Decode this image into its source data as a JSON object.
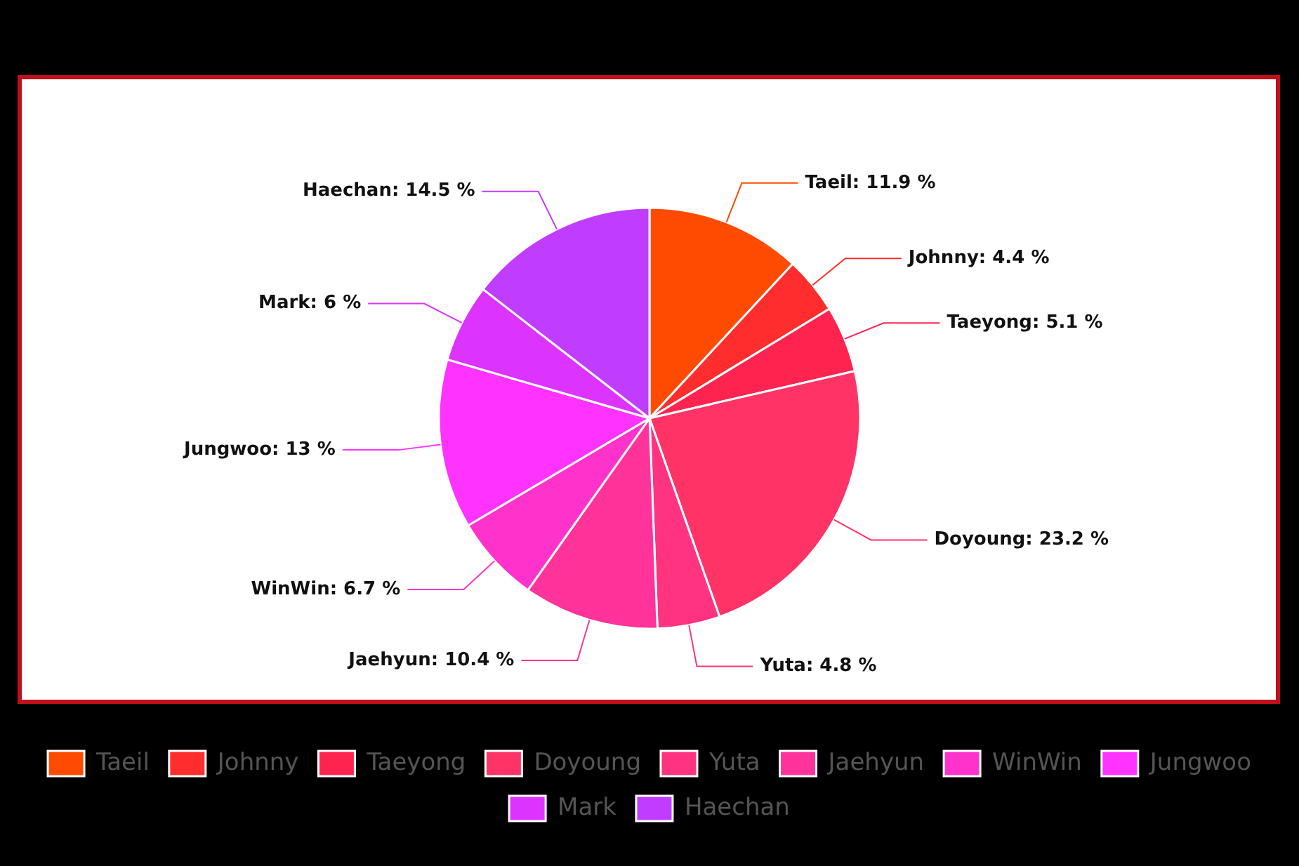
{
  "chart_data": {
    "type": "pie",
    "categories": [
      "Taeil",
      "Johnny",
      "Taeyong",
      "Doyoung",
      "Yuta",
      "Jaehyun",
      "WinWin",
      "Jungwoo",
      "Mark",
      "Haechan"
    ],
    "values": [
      11.9,
      4.4,
      5.1,
      23.2,
      4.8,
      10.4,
      6.7,
      13,
      6,
      14.5
    ],
    "colors": [
      "#ff4b00",
      "#ff2d2d",
      "#ff2450",
      "#ff3366",
      "#ff3380",
      "#ff3399",
      "#ff33cc",
      "#ff33ff",
      "#dd33ff",
      "#c03cff"
    ],
    "value_labels": [
      "Taeil: 11.9 %",
      "Johnny: 4.4 %",
      "Taeyong: 5.1 %",
      "Doyoung: 23.2 %",
      "Yuta: 4.8 %",
      "Jaehyun: 10.4 %",
      "WinWin: 6.7 %",
      "Jungwoo: 13 %",
      "Mark: 6 %",
      "Haechan: 14.5 %"
    ],
    "legend": "bottom"
  }
}
